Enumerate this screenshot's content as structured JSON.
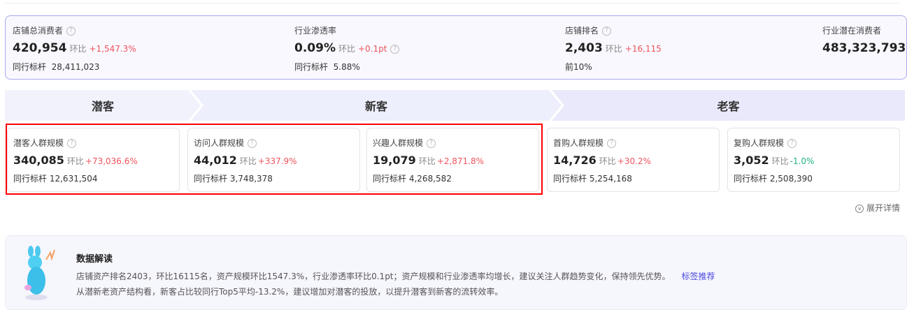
{
  "summary": [
    {
      "label": "店铺总消费者",
      "value": "420,954",
      "hb": "环比",
      "change": "+1,547.3%",
      "bench_label": "同行标杆",
      "bench": "28,411,023"
    },
    {
      "label": "行业渗透率",
      "value": "0.09%",
      "hb": "环比",
      "change": "+0.1pt",
      "bench_label": "同行标杆",
      "bench": "5.88%"
    },
    {
      "label": "店铺排名",
      "value": "2,403",
      "hb": "环比",
      "change": "+16,115",
      "bench": "前10%"
    },
    {
      "label": "行业潜在消费者",
      "value": "483,323,793"
    }
  ],
  "stages": [
    "潜客",
    "新客",
    "老客"
  ],
  "cards": [
    {
      "label": "潜客人群规模",
      "value": "340,085",
      "hb": "环比",
      "change": "+73,036.6%",
      "bench_label": "同行标杆",
      "bench": "12,631,504"
    },
    {
      "label": "访问人群规模",
      "value": "44,012",
      "hb": "环比",
      "change": "+337.9%",
      "bench_label": "同行标杆",
      "bench": "3,748,378"
    },
    {
      "label": "兴趣人群规模",
      "value": "19,079",
      "hb": "环比",
      "change": "+2,871.8%",
      "bench_label": "同行标杆",
      "bench": "4,268,582"
    },
    {
      "label": "首购人群规模",
      "value": "14,726",
      "hb": "环比",
      "change": "+30.2%",
      "bench_label": "同行标杆",
      "bench": "5,254,168"
    },
    {
      "label": "复购人群规模",
      "value": "3,052",
      "hb": "环比",
      "change": "-1.0%",
      "bench_label": "同行标杆",
      "bench": "2,508,390"
    }
  ],
  "expand_label": "展开详情",
  "insight": {
    "title": "数据解读",
    "line1": "店铺资产排名2403，环比16115名，资产规模环比1547.3%，行业渗透率环比0.1pt；资产规模和行业渗透率均增长，建议关注人群趋势变化，保持领先优势。",
    "link": "标签推荐",
    "line2": "从潜新老资产结构看，新客占比较同行Top5平均-13.2%，建议增加对潜客的投放，以提升潜客到新客的流转效率。"
  },
  "colors": {
    "up": "#f0535c",
    "down": "#1fb37d",
    "highlight": "#ff0000",
    "link": "#4a4ae0"
  }
}
